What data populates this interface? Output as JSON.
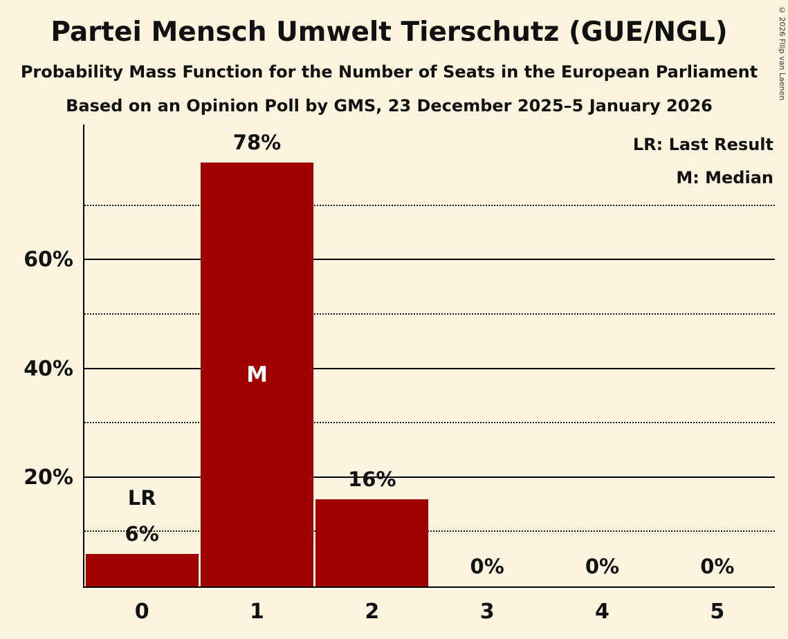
{
  "title": "Partei Mensch Umwelt Tierschutz (GUE/NGL)",
  "subtitle1": "Probability Mass Function for the Number of Seats in the European Parliament",
  "subtitle2": "Based on an Opinion Poll by GMS, 23 December 2025–5 January 2026",
  "legend": {
    "lr": "LR: Last Result",
    "m": "M: Median"
  },
  "copyright": "© 2026 Filip van Laenen",
  "colors": {
    "background": "#fdf4e0",
    "bar": "#a00000",
    "text": "#111111",
    "median_text": "#ffffff"
  },
  "chart_data": {
    "type": "bar",
    "title": "Partei Mensch Umwelt Tierschutz (GUE/NGL) — Probability Mass Function for the Number of Seats in the European Parliament",
    "categories": [
      "0",
      "1",
      "2",
      "3",
      "4",
      "5"
    ],
    "values": [
      6,
      78,
      16,
      0,
      0,
      0
    ],
    "bar_labels": [
      "6%",
      "78%",
      "16%",
      "0%",
      "0%",
      "0%"
    ],
    "annotations": [
      {
        "category_index": 0,
        "label": "LR",
        "meaning": "Last Result"
      },
      {
        "category_index": 1,
        "label": "M",
        "meaning": "Median"
      }
    ],
    "ylim": [
      0,
      85
    ],
    "y_solid_gridlines": [
      {
        "value": 20,
        "label": "20%"
      },
      {
        "value": 40,
        "label": "40%"
      },
      {
        "value": 60,
        "label": "60%"
      }
    ],
    "y_dotted_gridlines": [
      10,
      30,
      50,
      70
    ],
    "legend_position": "top-right",
    "grid": "horizontal"
  }
}
